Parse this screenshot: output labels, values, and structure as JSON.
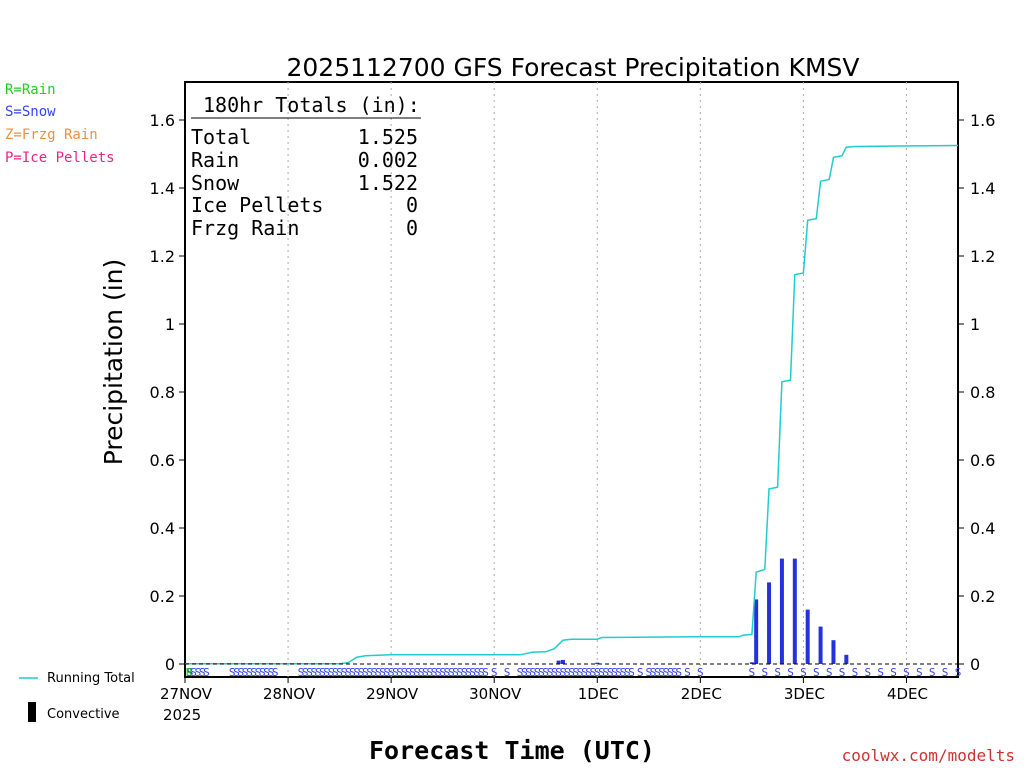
{
  "chart_data": {
    "type": "bar+line",
    "title": "2025112700 GFS Forecast Precipitation KMSV",
    "xlabel": "Forecast Time (UTC)",
    "ylabel": "Precipitation (in)",
    "ylim": [
      0,
      1.68
    ],
    "y_ticks": [
      "0",
      "0.2",
      "0.4",
      "0.6",
      "0.8",
      "1",
      "1.2",
      "1.4",
      "1.6"
    ],
    "y_tick_values": [
      0,
      0.2,
      0.4,
      0.6,
      0.8,
      1.0,
      1.2,
      1.4,
      1.6
    ],
    "x_unit": "forecast hours",
    "xlim": [
      0,
      180
    ],
    "x_tick_labels": [
      "27NOV",
      "28NOV",
      "29NOV",
      "30NOV",
      "1DEC",
      "2DEC",
      "3DEC",
      "4DEC"
    ],
    "x_tick_hours": [
      0,
      24,
      48,
      72,
      96,
      120,
      144,
      168
    ],
    "year_label": "2025",
    "grid": "vertical dotted at each day",
    "totals_box": {
      "header": "180hr Totals (in):",
      "rows": [
        {
          "label": "Total",
          "value": "1.525"
        },
        {
          "label": "Rain",
          "value": "0.002"
        },
        {
          "label": "Snow",
          "value": "1.522"
        },
        {
          "label": "Ice Pellets",
          "value": "0"
        },
        {
          "label": "Frzg Rain",
          "value": "0"
        }
      ]
    },
    "series": [
      {
        "name": "Running Total",
        "kind": "line",
        "color": "#22cccc",
        "points": [
          [
            0,
            0.001
          ],
          [
            36,
            0.001
          ],
          [
            38,
            0.004
          ],
          [
            39,
            0.012
          ],
          [
            40,
            0.02
          ],
          [
            42,
            0.024
          ],
          [
            45,
            0.026
          ],
          [
            48,
            0.027
          ],
          [
            72,
            0.027
          ],
          [
            78,
            0.027
          ],
          [
            81,
            0.035
          ],
          [
            84,
            0.036
          ],
          [
            86,
            0.045
          ],
          [
            88,
            0.07
          ],
          [
            90,
            0.073
          ],
          [
            96,
            0.073
          ],
          [
            97,
            0.078
          ],
          [
            108,
            0.079
          ],
          [
            120,
            0.08
          ],
          [
            129,
            0.08
          ],
          [
            130,
            0.085
          ],
          [
            132,
            0.087
          ],
          [
            133,
            0.27
          ],
          [
            135,
            0.278
          ],
          [
            136,
            0.515
          ],
          [
            138,
            0.52
          ],
          [
            139,
            0.83
          ],
          [
            141,
            0.835
          ],
          [
            142,
            1.145
          ],
          [
            144,
            1.15
          ],
          [
            145,
            1.305
          ],
          [
            147,
            1.31
          ],
          [
            148,
            1.42
          ],
          [
            150,
            1.425
          ],
          [
            151,
            1.49
          ],
          [
            153,
            1.495
          ],
          [
            154,
            1.52
          ],
          [
            156,
            1.522
          ],
          [
            180,
            1.525
          ]
        ]
      },
      {
        "name": "Snow bars",
        "kind": "bar",
        "color": "#2233dd",
        "points": [
          [
            87,
            0.01
          ],
          [
            88,
            0.012
          ],
          [
            96,
            0.004
          ],
          [
            132,
            0.005
          ],
          [
            133,
            0.19
          ],
          [
            136,
            0.24
          ],
          [
            139,
            0.31
          ],
          [
            142,
            0.31
          ],
          [
            145,
            0.16
          ],
          [
            148,
            0.11
          ],
          [
            151,
            0.07
          ],
          [
            154,
            0.027
          ]
        ]
      }
    ],
    "ptype_markers": {
      "rain_label": "R",
      "snow_label": "S",
      "rain_hours": [
        0
      ],
      "snow_hours": [
        0,
        1,
        2,
        3,
        4,
        5,
        11,
        12,
        13,
        14,
        15,
        16,
        17,
        18,
        19,
        20,
        21,
        27,
        28,
        29,
        30,
        31,
        32,
        33,
        34,
        35,
        36,
        37,
        38,
        39,
        40,
        41,
        42,
        43,
        44,
        45,
        46,
        47,
        48,
        49,
        50,
        51,
        52,
        53,
        54,
        55,
        56,
        57,
        58,
        59,
        60,
        61,
        62,
        63,
        64,
        65,
        66,
        67,
        68,
        69,
        70,
        72,
        75,
        78,
        79,
        80,
        81,
        82,
        83,
        84,
        85,
        86,
        87,
        88,
        89,
        90,
        91,
        92,
        93,
        94,
        95,
        96,
        97,
        98,
        99,
        100,
        101,
        102,
        103,
        104,
        106,
        108,
        109,
        110,
        111,
        112,
        113,
        114,
        115,
        117,
        120,
        132,
        135,
        138,
        141,
        144,
        147,
        150,
        153,
        156,
        159,
        162,
        165,
        168,
        171,
        174,
        177,
        180
      ]
    },
    "legend": {
      "ptype_keys": [
        {
          "text": "R=Rain",
          "color": "#22cc22"
        },
        {
          "text": "S=Snow",
          "color": "#3344ee"
        },
        {
          "text": "Z=Frzg Rain",
          "color": "#f09040"
        },
        {
          "text": "P=Ice Pellets",
          "color": "#ee2288"
        }
      ],
      "running_total": "Running Total",
      "convective": "Convective"
    },
    "credit": "coolwx.com/modelts"
  }
}
